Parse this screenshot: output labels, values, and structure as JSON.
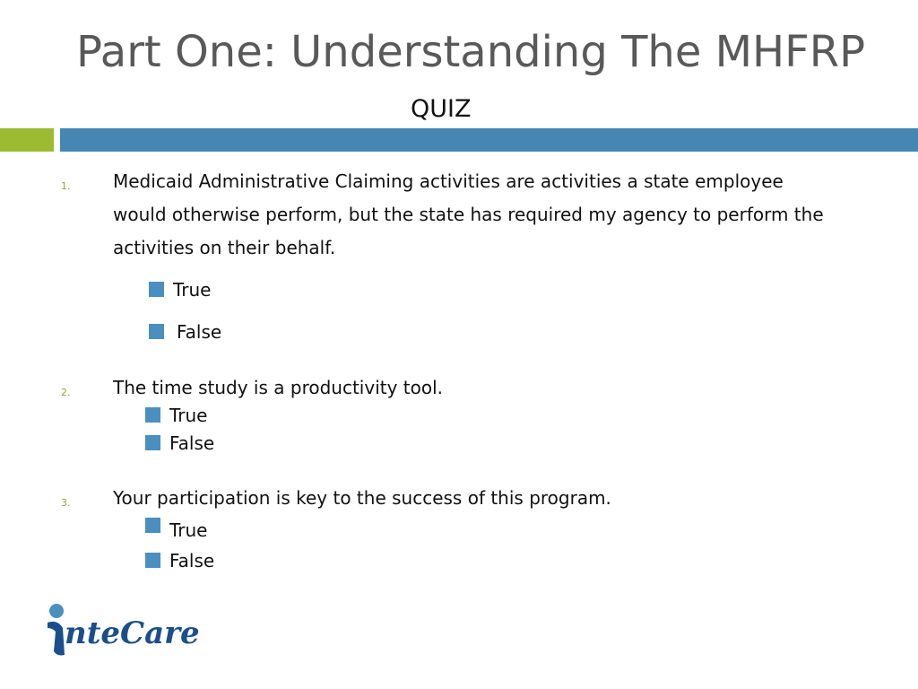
{
  "slide": {
    "title": "Part One:  Understanding The MHFRP",
    "subtitle": "QUIZ"
  },
  "questions": [
    {
      "number": "1.",
      "lines": [
        "Medicaid Administrative Claiming activities are activities a state employee",
        "would otherwise perform, but the state has required my agency to perform the",
        "activities on their behalf."
      ],
      "options": [
        "True",
        "False"
      ]
    },
    {
      "number": "2.",
      "lines": [
        "The time study is a productivity tool."
      ],
      "options": [
        "True",
        "False"
      ]
    },
    {
      "number": "3.",
      "lines": [
        "Your participation is key to the success of this  program."
      ],
      "options": [
        "True",
        "False"
      ]
    }
  ],
  "logo": {
    "text": "nteCare",
    "brand_color": "#1b4f8c",
    "accent_color": "#4a8fc0"
  },
  "colors": {
    "green_bar": "#9cbb31",
    "blue_bar": "#4586b3",
    "bullet": "#4a8fc0",
    "number": "#8ca837"
  }
}
